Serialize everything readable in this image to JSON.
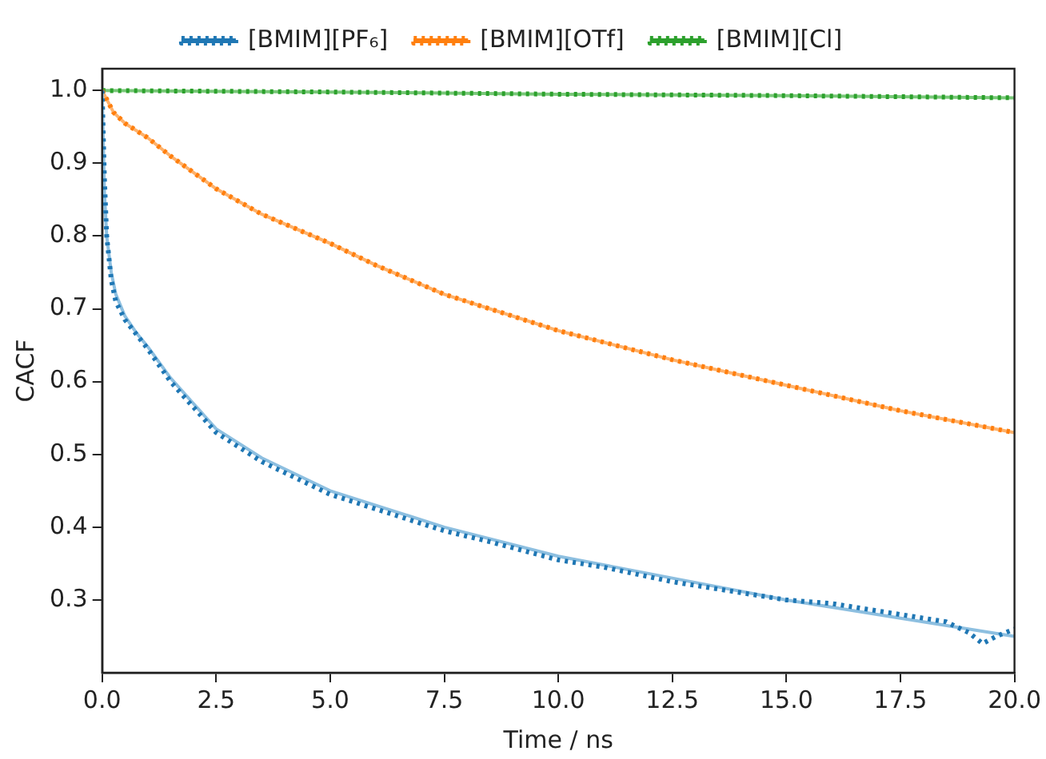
{
  "chart_data": {
    "type": "line",
    "xlabel": "Time / ns",
    "ylabel": "CACF",
    "xlim": [
      0,
      20
    ],
    "xticks": [
      {
        "value": 0,
        "label": "0.0"
      },
      2.5,
      {
        "value": 5,
        "label": "5.0"
      },
      7.5,
      {
        "value": 10,
        "label": "10.0"
      },
      12.5,
      {
        "value": 15,
        "label": "15.0"
      },
      17.5,
      {
        "value": 20,
        "label": "20.0"
      }
    ],
    "ylim": [
      0.2,
      1.03
    ],
    "yticks": [
      0.3,
      0.4,
      0.5,
      0.6,
      0.7,
      0.8,
      0.9,
      {
        "value": 1,
        "label": "1.0"
      }
    ],
    "grid": false,
    "legend": "top",
    "marker": "none",
    "series": [
      {
        "name": "[BMIM][PF₆]",
        "color": "#1f77b4",
        "line_style": "dotted",
        "x": [
          0,
          0.05,
          0.1,
          0.2,
          0.3,
          0.5,
          0.75,
          1,
          1.5,
          2,
          2.5,
          3.5,
          5,
          6,
          7.5,
          8.5,
          10,
          11,
          12.5,
          14,
          15,
          16,
          17.5,
          18.5,
          19,
          19.3,
          19.6,
          20
        ],
        "values": [
          1.0,
          0.88,
          0.8,
          0.74,
          0.71,
          0.685,
          0.665,
          0.645,
          0.6,
          0.565,
          0.53,
          0.49,
          0.445,
          0.425,
          0.395,
          0.38,
          0.355,
          0.345,
          0.325,
          0.31,
          0.3,
          0.295,
          0.28,
          0.27,
          0.255,
          0.24,
          0.25,
          0.26
        ]
      },
      {
        "color": "#8dbfe0",
        "line_style": "solid",
        "x": [
          0,
          0.05,
          0.1,
          0.2,
          0.3,
          0.5,
          0.75,
          1,
          1.5,
          2,
          2.5,
          3.5,
          5,
          7.5,
          10,
          12.5,
          15,
          17.5,
          20
        ],
        "values": [
          1.0,
          0.86,
          0.8,
          0.75,
          0.72,
          0.69,
          0.667,
          0.648,
          0.605,
          0.57,
          0.535,
          0.495,
          0.45,
          0.4,
          0.36,
          0.33,
          0.3,
          0.275,
          0.25
        ]
      },
      {
        "name": "[BMIM][OTf]",
        "color": "#ff7f0e",
        "line_style": "dotted",
        "x": [
          0,
          0.25,
          0.5,
          1,
          1.5,
          2.5,
          3.5,
          5,
          6,
          7.5,
          9,
          10,
          12.5,
          15,
          17.5,
          20
        ],
        "values": [
          1.0,
          0.97,
          0.955,
          0.935,
          0.91,
          0.865,
          0.83,
          0.79,
          0.76,
          0.72,
          0.69,
          0.67,
          0.63,
          0.595,
          0.56,
          0.53
        ]
      },
      {
        "color": "#ffb26b",
        "line_style": "solid",
        "x": [
          0,
          0.25,
          0.5,
          1,
          1.5,
          2.5,
          3.5,
          5,
          6,
          7.5,
          9,
          10,
          12.5,
          15,
          17.5,
          20
        ],
        "values": [
          1.0,
          0.97,
          0.955,
          0.935,
          0.91,
          0.865,
          0.83,
          0.79,
          0.76,
          0.72,
          0.69,
          0.67,
          0.63,
          0.595,
          0.56,
          0.53
        ]
      },
      {
        "name": "[BMIM][Cl]",
        "color": "#2ca02c",
        "line_style": "dotted",
        "x": [
          0,
          5,
          10,
          15,
          20
        ],
        "values": [
          1.0,
          0.998,
          0.995,
          0.993,
          0.99
        ]
      },
      {
        "color": "#78c878",
        "line_style": "solid",
        "x": [
          0,
          5,
          10,
          15,
          20
        ],
        "values": [
          1.0,
          0.998,
          0.995,
          0.993,
          0.99
        ]
      }
    ]
  }
}
